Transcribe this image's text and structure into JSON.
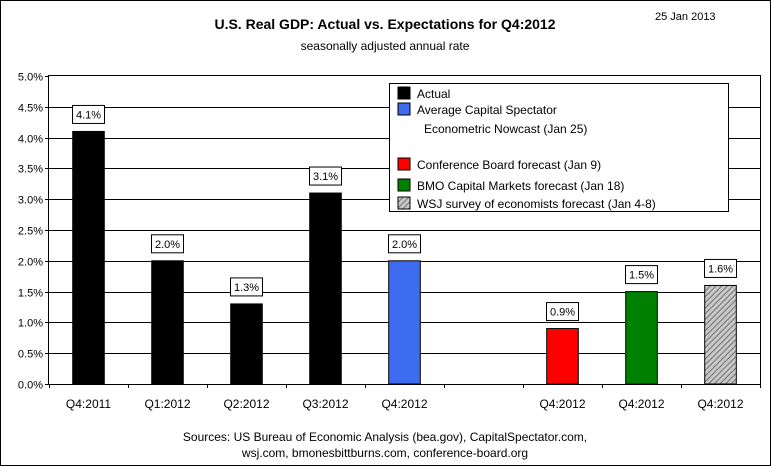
{
  "date_stamp": "25 Jan 2013",
  "chart_data": {
    "type": "bar",
    "title": "U.S. Real GDP: Actual vs. Expectations for Q4:2012",
    "subtitle": "seasonally adjusted annual rate",
    "ylim": [
      0,
      5.0
    ],
    "y_ticks": [
      "0.0%",
      "0.5%",
      "1.0%",
      "1.5%",
      "2.0%",
      "2.5%",
      "3.0%",
      "3.5%",
      "4.0%",
      "4.5%",
      "5.0%"
    ],
    "grid": true,
    "legend_position": "top-right",
    "categories": [
      "Q4:2011",
      "Q1:2012",
      "Q2:2012",
      "Q3:2012",
      "Q4:2012",
      "",
      "Q4:2012",
      "Q4:2012",
      "Q4:2012"
    ],
    "values": [
      4.1,
      2.0,
      1.3,
      3.1,
      2.0,
      null,
      0.9,
      1.5,
      1.6
    ],
    "data_labels": [
      "4.1%",
      "2.0%",
      "1.3%",
      "3.1%",
      "2.0%",
      "",
      "0.9%",
      "1.5%",
      "1.6%"
    ],
    "bar_series": [
      0,
      0,
      0,
      0,
      1,
      null,
      2,
      3,
      4
    ],
    "series": [
      {
        "name": "Actual",
        "color": "#000000"
      },
      {
        "name": "Average Capital Spectator Econometric Nowcast (Jan 25)",
        "label_lines": [
          "Average Capital Spectator",
          "Econometric Nowcast (Jan 25)"
        ],
        "color": "#3d6cf0"
      },
      {
        "name": "Conference Board forecast (Jan 9)",
        "label_lines": [
          "Conference Board forecast (Jan 9)"
        ],
        "color": "#ff0000"
      },
      {
        "name": "BMO Capital Markets forecast (Jan 18)",
        "label_lines": [
          "BMO Capital Markets forecast (Jan 18)"
        ],
        "color": "#008000"
      },
      {
        "name": "WSJ survey of economists forecast (Jan 4-8)",
        "label_lines": [
          "WSJ survey of economists forecast (Jan 4-8)"
        ],
        "color": "#909090",
        "pattern": "hatched"
      }
    ],
    "sources": [
      "Sources: US Bureau of Economic Analysis (bea.gov), CapitalSpectator.com,",
      "wsj.com, bmonesbittburns.com, conference-board.org"
    ]
  }
}
